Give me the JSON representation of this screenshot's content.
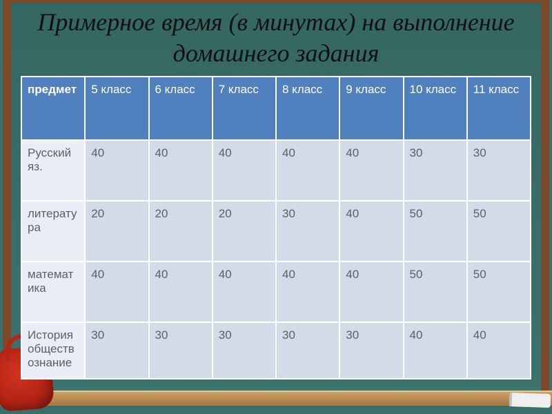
{
  "title": "Примерное время (в минутах) на выполнение домашнего задания",
  "table": {
    "type": "table",
    "header_bg": "#5080be",
    "header_text_color": "#ffffff",
    "subject_cell_bg": "#e9eef6",
    "value_cell_bg": "#d2dce9",
    "cell_text_color": "#5b5f66",
    "border_color": "#ffffff",
    "font_size": 17,
    "columns": [
      "предмет",
      "5 класс",
      "6 класс",
      "7 класс",
      "8 класс",
      "9 класс",
      "10 класс",
      "11 класс"
    ],
    "rows": [
      {
        "subject": "Русский яз.",
        "values": [
          "40",
          "40",
          "40",
          "40",
          "40",
          "30",
          "30"
        ]
      },
      {
        "subject": "литература",
        "values": [
          "20",
          "20",
          "20",
          "30",
          "40",
          "50",
          "50"
        ]
      },
      {
        "subject": "математика",
        "values": [
          "40",
          "40",
          "40",
          "40",
          "40",
          "50",
          "50"
        ]
      },
      {
        "subject": "История обществознание",
        "values": [
          "30",
          "30",
          "30",
          "30",
          "30",
          "40",
          "40"
        ]
      }
    ]
  },
  "style": {
    "title_font": "Times New Roman",
    "title_fontsize": 36,
    "title_italic": true,
    "board_color": "#3a6e6a",
    "frame_color": "#7a4a2a",
    "rail_color": "#caa06a"
  }
}
